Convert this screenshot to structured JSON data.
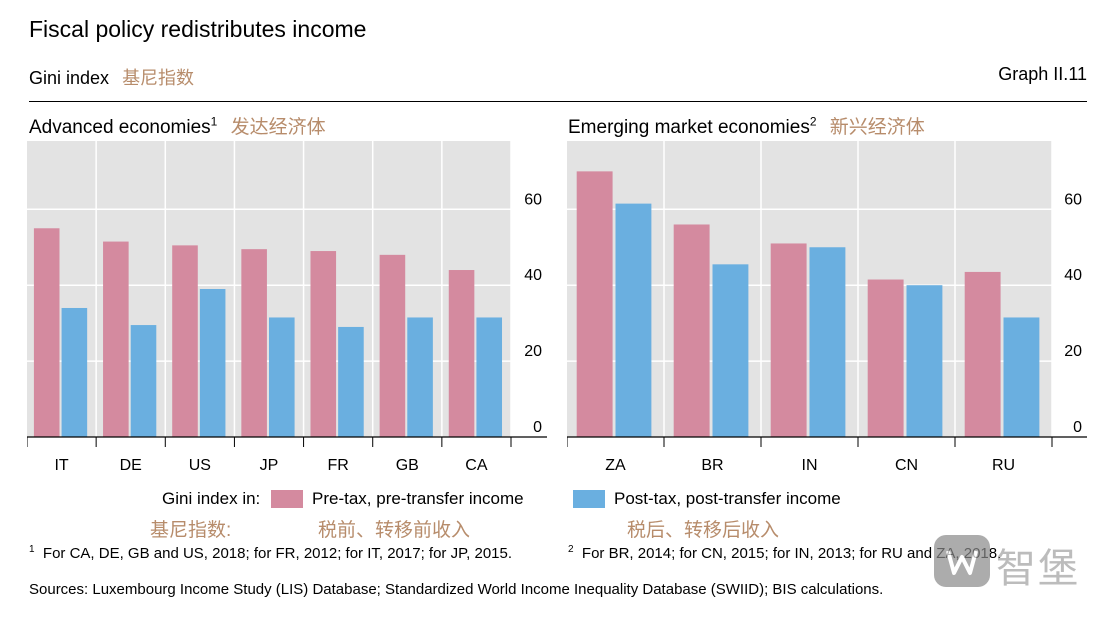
{
  "header": {
    "title": "Fiscal policy redistributes income",
    "subtitle": "Gini index",
    "subtitle_cn": "基尼指数",
    "graph_no": "Graph II.11"
  },
  "colors": {
    "pre": "#d48a9f",
    "post": "#6aafe0",
    "panel_bg": "#e3e3e3",
    "cn_text": "#b78c6b"
  },
  "chart_data": [
    {
      "type": "bar",
      "title": "Advanced economies",
      "title_sup": "1",
      "title_cn": "发达经济体",
      "categories": [
        "IT",
        "DE",
        "US",
        "JP",
        "FR",
        "GB",
        "CA"
      ],
      "series": [
        {
          "name": "Pre-tax, pre-transfer income",
          "values": [
            55,
            51.5,
            50.5,
            49.5,
            49,
            48,
            44
          ]
        },
        {
          "name": "Post-tax, post-transfer income",
          "values": [
            34,
            29.5,
            39,
            31.5,
            29,
            31.5,
            31.5
          ]
        }
      ],
      "yticks": [
        0,
        20,
        40,
        60
      ],
      "ylim": [
        0,
        78
      ],
      "grid": true,
      "axis_side": "right"
    },
    {
      "type": "bar",
      "title": "Emerging market economies",
      "title_sup": "2",
      "title_cn": "新兴经济体",
      "categories": [
        "ZA",
        "BR",
        "IN",
        "CN",
        "RU"
      ],
      "series": [
        {
          "name": "Pre-tax, pre-transfer income",
          "values": [
            70,
            56,
            51,
            41.5,
            43.5
          ]
        },
        {
          "name": "Post-tax, post-transfer income",
          "values": [
            61.5,
            45.5,
            50,
            40,
            31.5
          ]
        }
      ],
      "yticks": [
        0,
        20,
        40,
        60
      ],
      "ylim": [
        0,
        78
      ],
      "grid": true,
      "axis_side": "right"
    }
  ],
  "legend": {
    "prefix": "Gini index in:",
    "prefix_cn": "基尼指数:",
    "pre_label": "Pre-tax, pre-transfer income",
    "pre_label_cn": "税前、转移前收入",
    "post_label": "Post-tax, post-transfer income",
    "post_label_cn": "税后、转移后收入"
  },
  "footnotes": {
    "f1_mark": "1",
    "f1": "For CA, DE, GB and US, 2018; for FR, 2012; for IT, 2017; for JP, 2015.",
    "f2_mark": "2",
    "f2": "For BR, 2014; for CN, 2015; for IN, 2013; for RU and ZA, 2018."
  },
  "sources": "Sources: Luxembourg Income Study (LIS) Database; Standardized World Income Inequality Database (SWIID); BIS calculations.",
  "watermark": "智堡"
}
